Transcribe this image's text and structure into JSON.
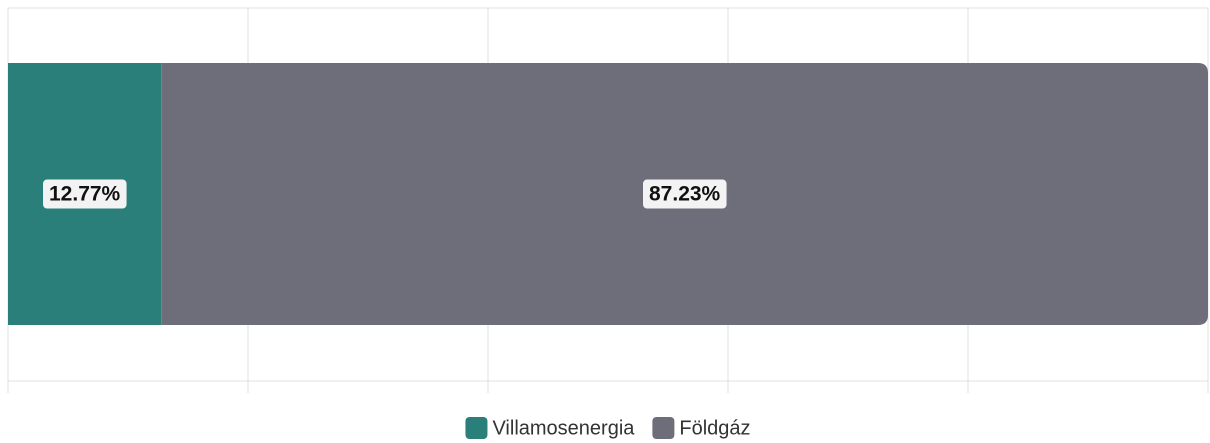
{
  "chart_data": {
    "type": "stacked-bar-horizontal",
    "series": [
      {
        "name": "Villamosenergia",
        "color": "#2b7f7b",
        "values": [
          12.77
        ],
        "value_labels": [
          "12.77%"
        ]
      },
      {
        "name": "Földgáz",
        "color": "#6e6d7a",
        "values": [
          87.23
        ],
        "value_labels": [
          "87.23%"
        ]
      }
    ],
    "xlim": [
      0,
      100
    ],
    "xticks": [
      0,
      20,
      40,
      60,
      80,
      100
    ],
    "grid": true,
    "legend": "bottom"
  }
}
